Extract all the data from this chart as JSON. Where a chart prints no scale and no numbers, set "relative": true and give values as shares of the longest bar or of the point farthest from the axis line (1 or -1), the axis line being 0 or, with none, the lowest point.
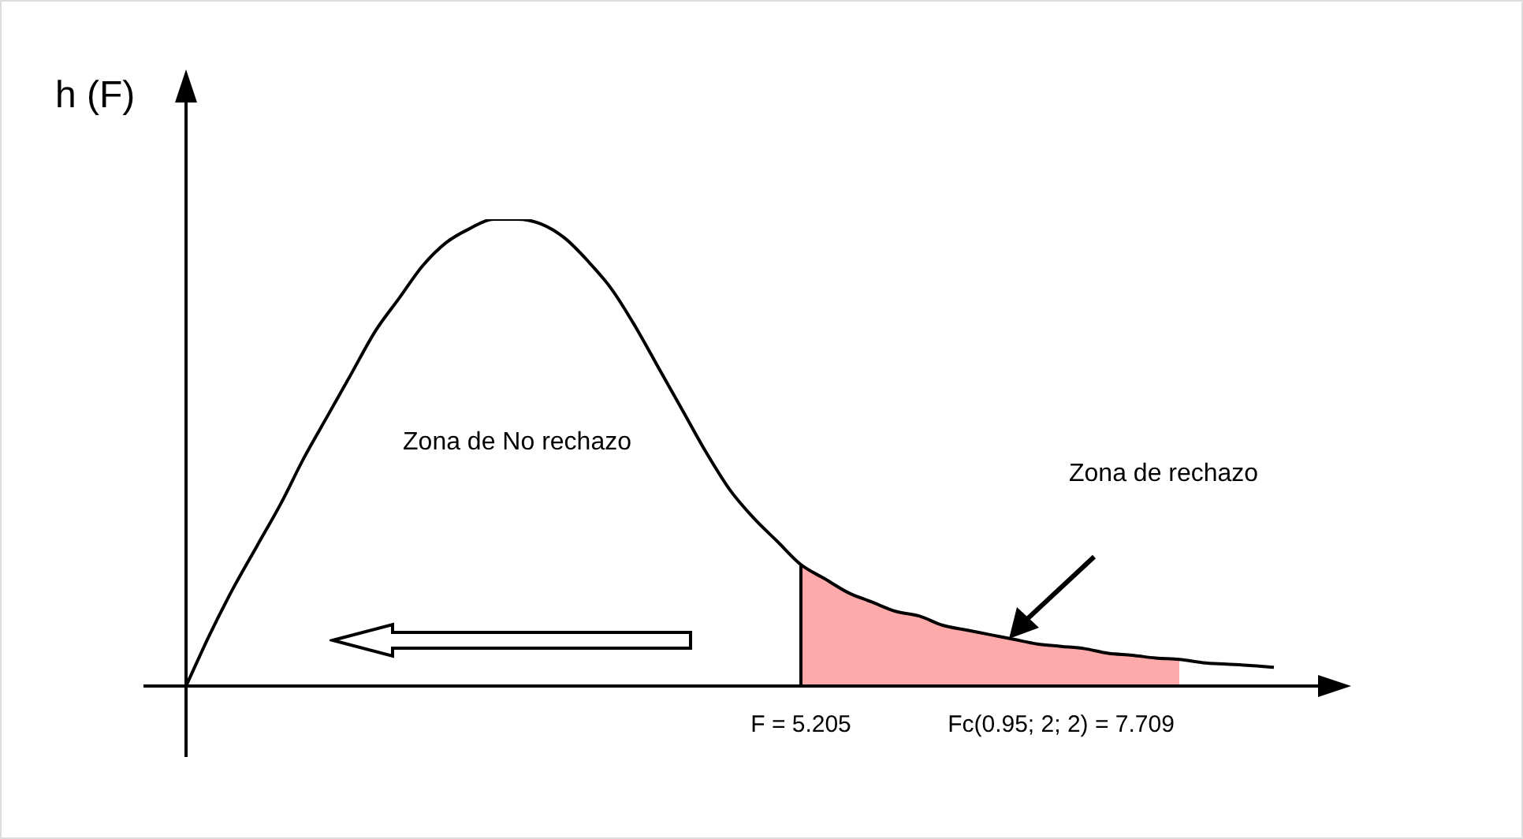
{
  "chart_data": {
    "type": "line",
    "relative": true,
    "ylabel": "h (F)",
    "legend": false,
    "marker": "none",
    "categories": [
      null,
      null,
      null,
      null,
      null,
      null,
      null,
      null,
      null,
      null,
      null,
      null,
      null,
      null,
      null,
      null,
      null,
      null,
      null,
      null,
      null,
      null,
      null,
      null,
      null,
      null,
      "F = 5.205",
      null,
      null,
      null,
      null,
      null,
      null,
      null,
      null,
      null,
      null,
      "Fc(0.95; 2; 2) = 7.709",
      null,
      null,
      null,
      null,
      null,
      null,
      null,
      null,
      null
    ],
    "series": [
      {
        "type": "line",
        "color": "#000000",
        "values": [
          0,
          0.11,
          0.21,
          0.3,
          0.39,
          0.49,
          0.58,
          0.67,
          0.76,
          0.83,
          0.9,
          0.95,
          0.98,
          1,
          1,
          0.99,
          0.96,
          0.91,
          0.85,
          0.77,
          0.68,
          0.59,
          0.5,
          0.42,
          0.36,
          0.31,
          0.26,
          0.23,
          0.2,
          0.18,
          0.16,
          0.15,
          0.13,
          0.12,
          0.11,
          0.1,
          0.09,
          0.085,
          0.08,
          0.07,
          0.066,
          0.06,
          0.057,
          0.05,
          0.047,
          0.044,
          0.04
        ]
      },
      {
        "type": "area",
        "name": "Zona de rechazo",
        "color": "#ff0000",
        "values": [
          null,
          null,
          null,
          null,
          null,
          null,
          null,
          null,
          null,
          null,
          null,
          null,
          null,
          null,
          null,
          null,
          null,
          null,
          null,
          null,
          null,
          null,
          null,
          null,
          null,
          null,
          0.26,
          0.23,
          0.2,
          0.18,
          0.16,
          0.15,
          0.13,
          0.12,
          0.11,
          0.1,
          0.09,
          0.085,
          0.08,
          0.07,
          0.066,
          0.06,
          0.057,
          null,
          null,
          null,
          null
        ]
      }
    ],
    "ref_lines": [
      {
        "axis": "x",
        "value": "F = 5.205",
        "color": "#000000"
      }
    ],
    "annotations": [
      "Zona de No rechazo"
    ]
  }
}
